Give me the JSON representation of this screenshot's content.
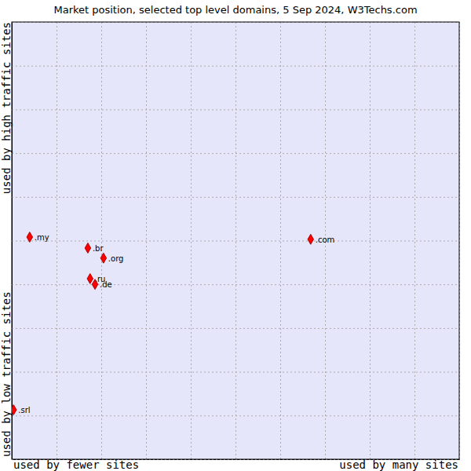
{
  "chart_data": {
    "type": "scatter",
    "title": "Market position, selected top level domains, 5 Sep 2024, W3Techs.com",
    "x_axis_labels": [
      "used by fewer sites",
      "used by many sites"
    ],
    "y_axis_labels": [
      "used by low traffic sites",
      "used by high traffic sites"
    ],
    "labels": [
      ".my",
      ".br",
      ".org",
      ".ru",
      ".de",
      ".com",
      ".srl"
    ],
    "x": [
      0.4,
      1.7,
      2.05,
      1.75,
      1.86,
      6.68,
      0.04
    ],
    "values": [
      5.08,
      4.83,
      4.6,
      4.13,
      4.0,
      5.03,
      1.13
    ],
    "color": "#ff0000",
    "marker": "diamond",
    "xlim": [
      0,
      10
    ],
    "ylim": [
      0,
      10
    ],
    "xticks": [
      0,
      1,
      2,
      3,
      4,
      5,
      6,
      7,
      8,
      9,
      10
    ],
    "yticks": [
      0,
      1,
      2,
      3,
      4,
      5,
      6,
      7,
      8,
      9,
      10
    ],
    "grid": true,
    "tick_labels": false
  }
}
